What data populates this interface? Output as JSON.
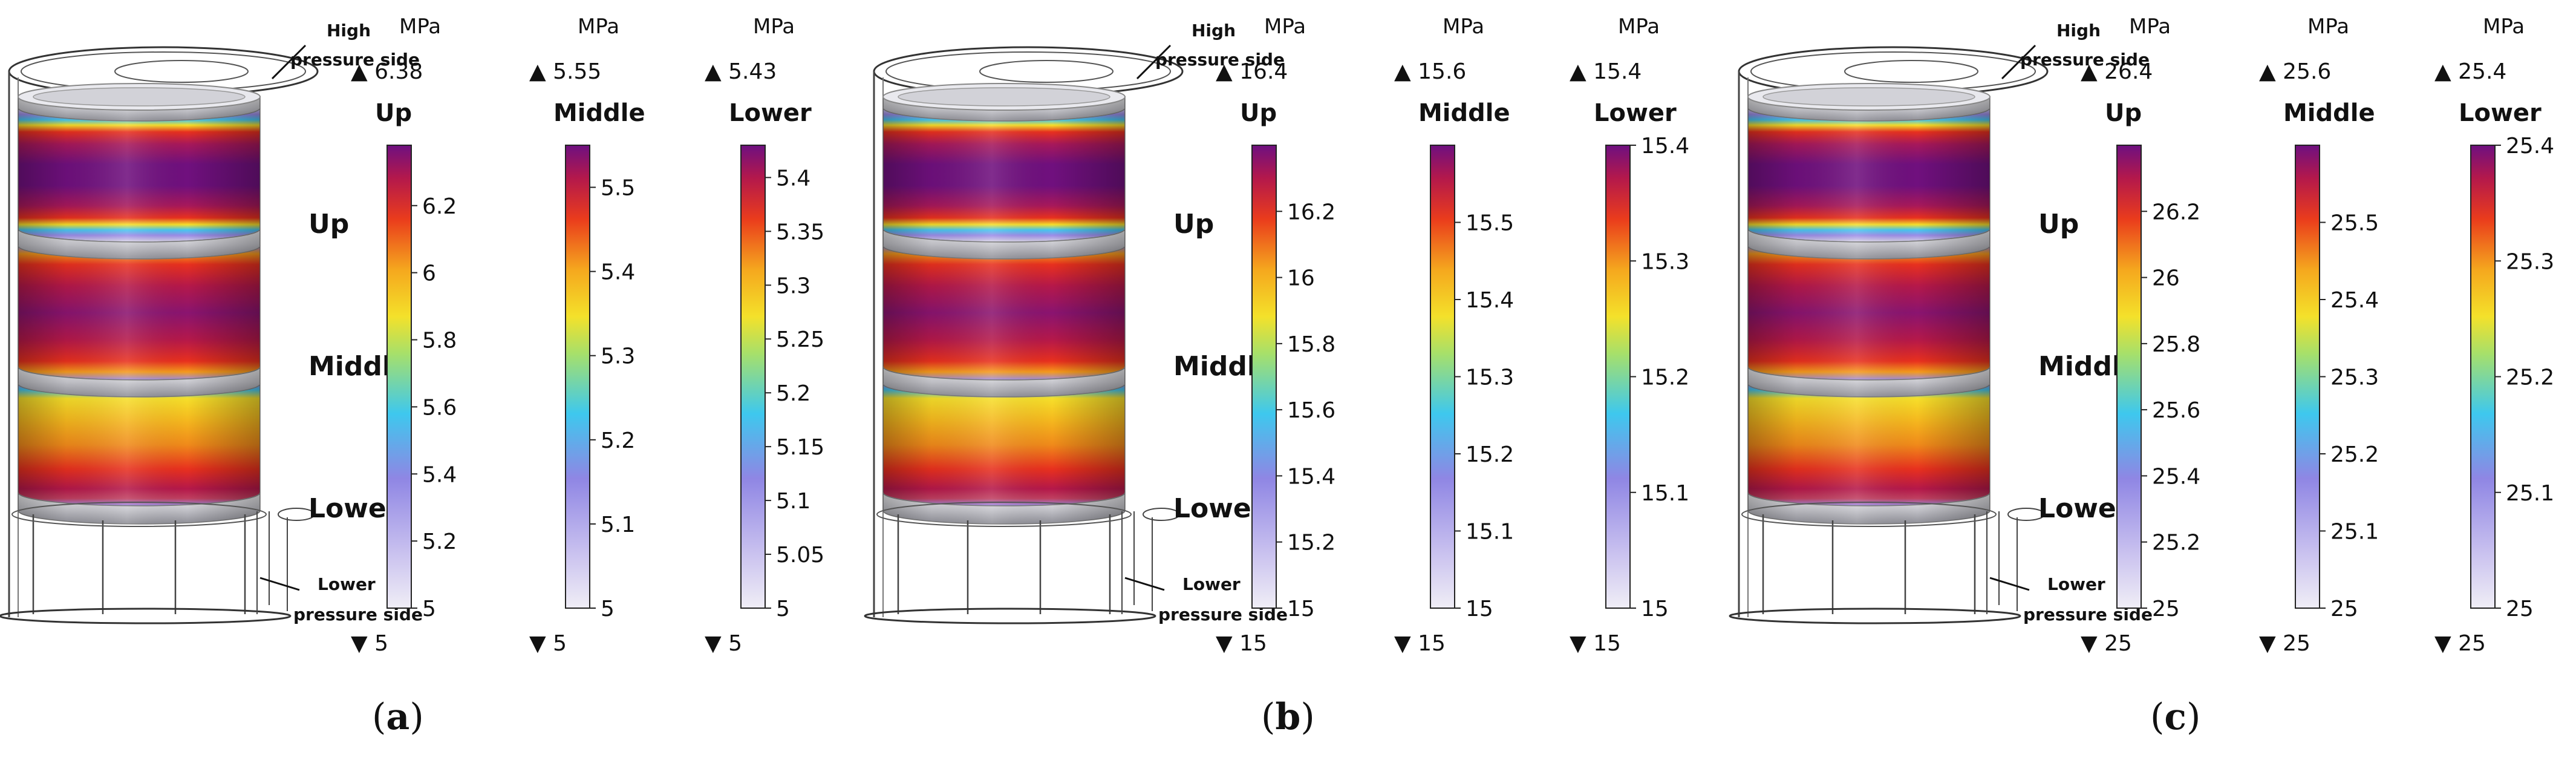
{
  "unit": "MPa",
  "up_label": "Up",
  "middle_label": "Middle",
  "lower_label": "Lower",
  "high_side_l1": "High",
  "high_side_l2": "pressure side",
  "low_side_l1": "Lower",
  "low_side_l2": "pressure side",
  "colors": [
    "#f0eef6",
    "#9c8ce8",
    "#46c7f0",
    "#f6df2a",
    "#f59a1c",
    "#e8301e",
    "#b5184a",
    "#70107e"
  ],
  "panels": [
    {
      "id": "a",
      "label_open": "(",
      "label_letter": "a",
      "label_close": ")",
      "bars": [
        {
          "name": "Up",
          "max_text": "6.38",
          "min_text": "5",
          "min": 5,
          "max": 6.38,
          "ticks": [
            5,
            5.2,
            5.4,
            5.6,
            5.8,
            6,
            6.2
          ]
        },
        {
          "name": "Middle",
          "max_text": "5.55",
          "min_text": "5",
          "min": 5,
          "max": 5.55,
          "ticks": [
            5,
            5.1,
            5.2,
            5.3,
            5.4,
            5.5
          ]
        },
        {
          "name": "Lower",
          "max_text": "5.43",
          "min_text": "5",
          "min": 5,
          "max": 5.43,
          "ticks": [
            5,
            5.05,
            5.1,
            5.15,
            5.2,
            5.25,
            5.3,
            5.35,
            5.4
          ]
        }
      ]
    },
    {
      "id": "b",
      "label_open": "(",
      "label_letter": "b",
      "label_close": ")",
      "bars": [
        {
          "name": "Up",
          "max_text": "16.4",
          "min_text": "15",
          "min": 15,
          "max": 16.4,
          "ticks": [
            15,
            15.2,
            15.4,
            15.6,
            15.8,
            16,
            16.2
          ]
        },
        {
          "name": "Middle",
          "max_text": "15.6",
          "min_text": "15",
          "min": 15,
          "max": 15.6,
          "ticks": [
            15,
            15.1,
            15.2,
            15.3,
            15.4,
            15.5
          ]
        },
        {
          "name": "Lower",
          "max_text": "15.4",
          "min_text": "15",
          "min": 15,
          "max": 15.4,
          "ticks": [
            15,
            15.1,
            15.2,
            15.3,
            15.4
          ]
        }
      ]
    },
    {
      "id": "c",
      "label_open": "(",
      "label_letter": "c",
      "label_close": ")",
      "bars": [
        {
          "name": "Up",
          "max_text": "26.4",
          "min_text": "25",
          "min": 25,
          "max": 26.4,
          "ticks": [
            25,
            25.2,
            25.4,
            25.6,
            25.8,
            26,
            26.2
          ]
        },
        {
          "name": "Middle",
          "max_text": "25.6",
          "min_text": "25",
          "min": 25,
          "max": 25.6,
          "ticks": [
            25,
            25.1,
            25.2,
            25.3,
            25.4,
            25.5
          ]
        },
        {
          "name": "Lower",
          "max_text": "25.4",
          "min_text": "25",
          "min": 25,
          "max": 25.4,
          "ticks": [
            25,
            25.1,
            25.2,
            25.3,
            25.4
          ]
        }
      ]
    }
  ]
}
